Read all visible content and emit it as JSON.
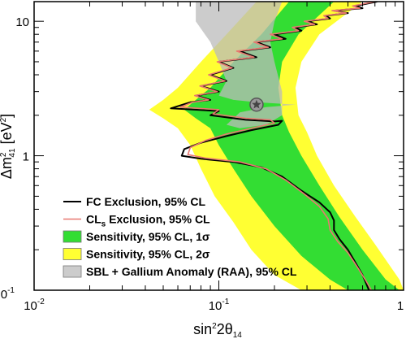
{
  "chart_data": {
    "type": "area",
    "xscale": "log",
    "yscale": "log",
    "xlim": [
      0.01,
      1
    ],
    "ylim": [
      0.1,
      14
    ],
    "xlabel": {
      "base": "sin",
      "sup": "2",
      "mid": "2θ",
      "sub": "14"
    },
    "ylabel": {
      "base": "Δm",
      "sup": "2",
      "sub": "41",
      "unit": " [eV",
      "unit_sup": "2",
      "unit_end": "]"
    },
    "x_ticks": [
      {
        "value": 0.01,
        "base": "10",
        "exp": "-2"
      },
      {
        "value": 0.1,
        "base": "10",
        "exp": "-1"
      },
      {
        "value": 1,
        "base": "1",
        "exp": ""
      }
    ],
    "y_ticks": [
      {
        "value": 0.1,
        "label": "10",
        "sup": "-1"
      },
      {
        "value": 1,
        "label": "1",
        "sup": ""
      },
      {
        "value": 10,
        "label": "10",
        "sup": ""
      }
    ],
    "best_fit_point": {
      "x": 0.16,
      "y": 2.4
    },
    "legend": [
      {
        "key": "fc",
        "label": "FC Exclusion, 95% CL",
        "label_main": "FC Exclusion, 95% CL",
        "style": "line",
        "color": "#000000"
      },
      {
        "key": "cls",
        "label": "CLs Exclusion, 95% CL",
        "label_pre": "CL",
        "label_sub": "s",
        "label_post": " Exclusion, 95% CL",
        "style": "line",
        "color": "#e87870"
      },
      {
        "key": "sens1",
        "label": "Sensitivity, 95% CL, 1σ",
        "label_main": "Sensitivity, 95% CL, 1σ",
        "style": "box",
        "color": "#33dd33"
      },
      {
        "key": "sens2",
        "label": "Sensitivity, 95% CL, 2σ",
        "label_main": "Sensitivity, 95% CL, 2σ",
        "style": "box",
        "color": "#ffff33"
      },
      {
        "key": "raa",
        "label": "SBL + Gallium Anomaly (RAA), 95% CL",
        "label_main": "SBL + Gallium Anomaly (RAA), 95% CL",
        "style": "box",
        "color": "#cccccc"
      }
    ],
    "series": [
      {
        "name": "Sensitivity, 95% CL, 2σ",
        "kind": "band",
        "color": "#ffff33",
        "left": [
          [
            0.16,
            14
          ],
          [
            0.11,
            8
          ],
          [
            0.08,
            5
          ],
          [
            0.06,
            3.2
          ],
          [
            0.05,
            2.6
          ],
          [
            0.042,
            2.2
          ],
          [
            0.05,
            1.9
          ],
          [
            0.06,
            1.6
          ],
          [
            0.07,
            1.2
          ],
          [
            0.08,
            0.8
          ],
          [
            0.095,
            0.5
          ],
          [
            0.12,
            0.32
          ],
          [
            0.15,
            0.2
          ],
          [
            0.2,
            0.13
          ],
          [
            0.28,
            0.1
          ]
        ],
        "right": [
          [
            0.6,
            14
          ],
          [
            0.35,
            8
          ],
          [
            0.28,
            5
          ],
          [
            0.26,
            3.2
          ],
          [
            0.27,
            2.0
          ],
          [
            0.3,
            1.5
          ],
          [
            0.34,
            1.0
          ],
          [
            0.42,
            0.6
          ],
          [
            0.55,
            0.35
          ],
          [
            0.7,
            0.22
          ],
          [
            0.95,
            0.12
          ],
          [
            1,
            0.1
          ]
        ]
      },
      {
        "name": "Sensitivity, 95% CL, 1σ",
        "kind": "band",
        "color": "#33dd33",
        "left": [
          [
            0.24,
            14
          ],
          [
            0.17,
            8
          ],
          [
            0.12,
            5
          ],
          [
            0.09,
            3.2
          ],
          [
            0.075,
            2.6
          ],
          [
            0.065,
            2.2
          ],
          [
            0.075,
            1.9
          ],
          [
            0.09,
            1.6
          ],
          [
            0.1,
            1.2
          ],
          [
            0.12,
            0.8
          ],
          [
            0.15,
            0.5
          ],
          [
            0.2,
            0.3
          ],
          [
            0.28,
            0.18
          ],
          [
            0.4,
            0.12
          ],
          [
            0.5,
            0.1
          ]
        ],
        "right": [
          [
            0.42,
            14
          ],
          [
            0.27,
            8
          ],
          [
            0.22,
            5
          ],
          [
            0.21,
            3.2
          ],
          [
            0.22,
            2.0
          ],
          [
            0.24,
            1.5
          ],
          [
            0.28,
            1.0
          ],
          [
            0.35,
            0.6
          ],
          [
            0.45,
            0.35
          ],
          [
            0.6,
            0.2
          ],
          [
            0.8,
            0.12
          ],
          [
            0.95,
            0.1
          ]
        ]
      },
      {
        "name": "SBL + Gallium Anomaly (RAA), 95% CL",
        "kind": "region",
        "color": "#bbbbbb",
        "points": [
          [
            0.075,
            14
          ],
          [
            0.075,
            10
          ],
          [
            0.09,
            7
          ],
          [
            0.1,
            5
          ],
          [
            0.11,
            3.6
          ],
          [
            0.1,
            2.8
          ],
          [
            0.12,
            2.6
          ],
          [
            0.16,
            2.5
          ],
          [
            0.26,
            2.4
          ],
          [
            0.18,
            2.3
          ],
          [
            0.13,
            2.1
          ],
          [
            0.11,
            1.7
          ],
          [
            0.13,
            1.6
          ],
          [
            0.18,
            1.7
          ],
          [
            0.22,
            2.0
          ],
          [
            0.22,
            3
          ],
          [
            0.2,
            5
          ],
          [
            0.19,
            7
          ],
          [
            0.2,
            10
          ],
          [
            0.22,
            14
          ]
        ]
      },
      {
        "name": "FC Exclusion, 95% CL",
        "kind": "line",
        "color": "#000000",
        "points": [
          [
            0.72,
            14
          ],
          [
            0.55,
            13
          ],
          [
            0.6,
            12.5
          ],
          [
            0.42,
            12
          ],
          [
            0.5,
            11.5
          ],
          [
            0.38,
            11
          ],
          [
            0.4,
            10.5
          ],
          [
            0.3,
            10
          ],
          [
            0.34,
            9.5
          ],
          [
            0.26,
            9
          ],
          [
            0.28,
            8.5
          ],
          [
            0.2,
            8
          ],
          [
            0.23,
            7.4
          ],
          [
            0.16,
            7
          ],
          [
            0.19,
            6.4
          ],
          [
            0.13,
            6
          ],
          [
            0.16,
            5.4
          ],
          [
            0.1,
            5
          ],
          [
            0.12,
            4.5
          ],
          [
            0.09,
            4
          ],
          [
            0.11,
            3.6
          ],
          [
            0.08,
            3.3
          ],
          [
            0.1,
            3
          ],
          [
            0.075,
            2.8
          ],
          [
            0.09,
            2.6
          ],
          [
            0.07,
            2.5
          ],
          [
            0.055,
            2.25
          ],
          [
            0.1,
            2.15
          ],
          [
            0.09,
            2.0
          ],
          [
            0.14,
            1.85
          ],
          [
            0.2,
            1.8
          ],
          [
            0.22,
            1.82
          ],
          [
            0.21,
            1.7
          ],
          [
            0.15,
            1.55
          ],
          [
            0.11,
            1.4
          ],
          [
            0.08,
            1.25
          ],
          [
            0.065,
            1.12
          ],
          [
            0.063,
            1.0
          ],
          [
            0.08,
            0.95
          ],
          [
            0.12,
            0.9
          ],
          [
            0.17,
            0.82
          ],
          [
            0.22,
            0.7
          ],
          [
            0.28,
            0.55
          ],
          [
            0.35,
            0.45
          ],
          [
            0.4,
            0.38
          ],
          [
            0.42,
            0.33
          ],
          [
            0.42,
            0.28
          ],
          [
            0.45,
            0.24
          ],
          [
            0.5,
            0.2
          ],
          [
            0.55,
            0.16
          ],
          [
            0.6,
            0.13
          ],
          [
            0.65,
            0.1
          ]
        ]
      },
      {
        "name": "CLs Exclusion, 95% CL",
        "kind": "line",
        "color": "#e87870",
        "points": [
          [
            0.7,
            14
          ],
          [
            0.53,
            13
          ],
          [
            0.58,
            12.5
          ],
          [
            0.41,
            12
          ],
          [
            0.49,
            11.5
          ],
          [
            0.37,
            11
          ],
          [
            0.39,
            10.5
          ],
          [
            0.29,
            10
          ],
          [
            0.33,
            9.5
          ],
          [
            0.25,
            9
          ],
          [
            0.27,
            8.5
          ],
          [
            0.19,
            8
          ],
          [
            0.22,
            7.4
          ],
          [
            0.155,
            7
          ],
          [
            0.185,
            6.4
          ],
          [
            0.125,
            6
          ],
          [
            0.155,
            5.4
          ],
          [
            0.098,
            5
          ],
          [
            0.118,
            4.5
          ],
          [
            0.088,
            4
          ],
          [
            0.108,
            3.6
          ],
          [
            0.079,
            3.3
          ],
          [
            0.098,
            3
          ],
          [
            0.074,
            2.8
          ],
          [
            0.088,
            2.6
          ],
          [
            0.072,
            2.5
          ],
          [
            0.062,
            2.3
          ],
          [
            0.1,
            2.2
          ],
          [
            0.093,
            2.05
          ],
          [
            0.14,
            1.9
          ],
          [
            0.19,
            1.85
          ],
          [
            0.2,
            1.75
          ],
          [
            0.15,
            1.6
          ],
          [
            0.11,
            1.45
          ],
          [
            0.085,
            1.3
          ],
          [
            0.07,
            1.15
          ],
          [
            0.068,
            1.02
          ],
          [
            0.085,
            0.96
          ],
          [
            0.13,
            0.9
          ],
          [
            0.18,
            0.8
          ],
          [
            0.23,
            0.66
          ],
          [
            0.29,
            0.52
          ],
          [
            0.35,
            0.42
          ],
          [
            0.39,
            0.34
          ],
          [
            0.4,
            0.28
          ],
          [
            0.44,
            0.23
          ],
          [
            0.5,
            0.19
          ],
          [
            0.56,
            0.15
          ],
          [
            0.62,
            0.12
          ],
          [
            0.67,
            0.1
          ]
        ]
      }
    ]
  }
}
